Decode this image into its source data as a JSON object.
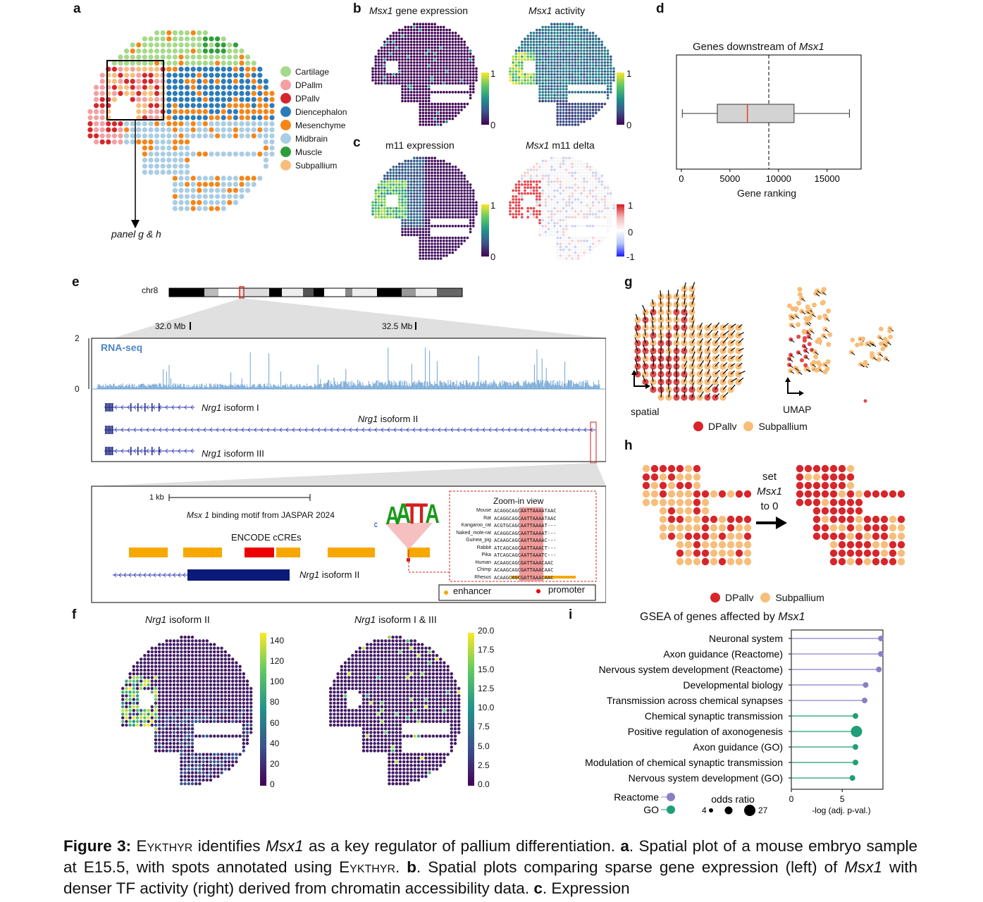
{
  "panel_labels": {
    "a": "a",
    "b": "b",
    "c": "c",
    "d": "d",
    "e": "e",
    "f": "f",
    "g": "g",
    "h": "h",
    "i": "i"
  },
  "panel_a": {
    "legend": [
      {
        "name": "Cartilage",
        "color": "#a6d98a"
      },
      {
        "name": "DPallm",
        "color": "#f3a0a3"
      },
      {
        "name": "DPallv",
        "color": "#d7262b"
      },
      {
        "name": "Diencephalon",
        "color": "#2b7bba"
      },
      {
        "name": "Mesenchyme",
        "color": "#f58518"
      },
      {
        "name": "Midbrain",
        "color": "#a9cde4"
      },
      {
        "name": "Muscle",
        "color": "#2f9e3a"
      },
      {
        "name": "Subpallium",
        "color": "#f7be7b"
      }
    ],
    "arrow_label": "panel g & h"
  },
  "panel_b": {
    "left_title_italic": "Msx1",
    "left_title_rest": " gene expression",
    "right_title_italic": "Msx1",
    "right_title_rest": " activity",
    "cbar_max": "1",
    "cbar_min": "0"
  },
  "panel_c": {
    "left_title": "m11 expression",
    "right_title_italic": "Msx1",
    "right_title_rest": " m11 delta",
    "cbar_max": "1",
    "cbar_min": "0",
    "delta_max": "1",
    "delta_mid": "0",
    "delta_min": "-1"
  },
  "panel_d": {
    "title_prefix": "Genes downstream of ",
    "title_italic": "Msx1",
    "xlabel": "Gene ranking",
    "ticks": [
      "0",
      "5000",
      "10000",
      "15000"
    ]
  },
  "panel_e": {
    "chrom": "chr8",
    "pos1": "32.0 Mb",
    "pos2": "32.5 Mb",
    "track_label": "RNA-seq",
    "y_max": "2",
    "y_min": "0",
    "isoforms": [
      {
        "italic": "Nrg1",
        "rest": " isoform I"
      },
      {
        "italic": "Nrg1",
        "rest": " isoform II"
      },
      {
        "italic": "Nrg1",
        "rest": " isoform III"
      }
    ],
    "scale": "1 kb",
    "motif_italic": "Msx 1",
    "motif_rest": " binding motif from JASPAR 2024",
    "motif_letters": [
      "C",
      "A",
      "A",
      "T",
      "T",
      "A"
    ],
    "encode": "ENCODE cCREs",
    "iso2_italic": "Nrg1",
    "iso2_rest": " isoform II",
    "zoom_title": "Zoom-in view",
    "species": [
      "Mouse",
      "Rat",
      "Kangaroo_rat",
      "Naked_mole-rat",
      "Guinea_pig",
      "Rabbit",
      "Pika",
      "Human",
      "Chimp",
      "Rhesus"
    ],
    "sequences": [
      "ACAGGCAGCAATTAAAATAAC",
      "ACAGGCAGCAATTAAAATAAC",
      "ACGTGCAGCAATTAAAAT---",
      "ACAGGCAGCAATTAAAAT---",
      "ACAAGCAGCAATTAAAAC---",
      "ATCAGCAGCAATTAAACT---",
      "ATCAGCAGCAATTAAATC---",
      "ACAAGCAGCGATTAAACAAC",
      "ACAAGCAGCGATTAAACAAC",
      "ACAAGCAGCGATTAAACAAC"
    ],
    "legend_enhancer": "enhancer",
    "legend_promoter": "promoter"
  },
  "panel_f": {
    "left_italic": "Nrg1",
    "left_rest": " isoform II",
    "right_italic": "Nrg1",
    "right_rest": " isoform I & III",
    "left_ticks": [
      "140",
      "120",
      "100",
      "80",
      "60",
      "40",
      "20",
      "0"
    ],
    "right_ticks": [
      "20.0",
      "17.5",
      "15.0",
      "12.5",
      "10.0",
      "7.5",
      "5.0",
      "2.5",
      "0.0"
    ]
  },
  "panel_g": {
    "spatial": "spatial",
    "umap": "UMAP",
    "legend": [
      {
        "name": "DPallv",
        "color": "#d7262b"
      },
      {
        "name": "Subpallium",
        "color": "#f7be7b"
      }
    ]
  },
  "panel_h": {
    "arrow_line1": "set",
    "arrow_line2": "Msx1",
    "arrow_line3": "to 0",
    "legend": [
      {
        "name": "DPallv",
        "color": "#d7262b"
      },
      {
        "name": "Subpallium",
        "color": "#f7be7b"
      }
    ]
  },
  "panel_i": {
    "title_prefix": "GSEA of genes affected by ",
    "title_italic": "Msx1",
    "xlabel": "-log (adj. p-val.)",
    "ticks": [
      "0",
      "5"
    ],
    "legend_reactome": "Reactome",
    "legend_go": "GO",
    "odds_ratio": "odds ratio",
    "odds_min": "4",
    "odds_max": "27",
    "colors": {
      "Reactome": "#8a7fc7",
      "GO": "#1f9e77"
    }
  },
  "chart_data": [
    {
      "type": "box",
      "title": "Genes downstream of Msx1",
      "xlabel": "Gene ranking",
      "whisker_low": 100,
      "q1": 3700,
      "median": 6800,
      "q3": 11600,
      "whisker_high": 17300,
      "reference_line": 9000,
      "xlim": [
        -500,
        18500
      ]
    },
    {
      "type": "lollipop",
      "title": "GSEA of genes affected by Msx1",
      "xlabel": "-log (adj. p-val.)",
      "xlim": [
        0,
        9
      ],
      "categories": [
        "Neuronal system",
        "Axon guidance (Reactome)",
        "Nervous system development (Reactome)",
        "Developmental biology",
        "Transmission across chemical synapses",
        "Chemical synaptic transmission",
        "Positive regulation of axonogenesis",
        "Axon guidance (GO)",
        "Modulation of chemical synaptic transmission",
        "Nervous system development (GO)"
      ],
      "values": [
        8.8,
        8.8,
        8.6,
        7.3,
        7.2,
        6.3,
        6.4,
        6.3,
        6.3,
        6.0
      ],
      "groups": [
        "Reactome",
        "Reactome",
        "Reactome",
        "Reactome",
        "Reactome",
        "GO",
        "GO",
        "GO",
        "GO",
        "GO"
      ],
      "odds_ratio": [
        6,
        6,
        6,
        6,
        6,
        6,
        27,
        6,
        6,
        6
      ]
    }
  ],
  "caption": {
    "fig": "Figure 3:",
    "s1_sc": "Eykthyr",
    "s1": " identifies ",
    "s1_it": "Msx1",
    "s1b": " as a key regulator of pallium differentiation.",
    "a_lab": "a",
    "a_text": ". Spatial plot of a mouse embryo sample at E15.5, with spots annotated using ",
    "a_sc": "Eykthyr",
    "a_end": ".",
    "b_lab": "b",
    "b_text": ". Spatial plots comparing sparse gene expression (left) of ",
    "b_it": "Msx1",
    "b_text2": " with denser TF activity (right) derived from chromatin accessibility data.",
    "c_lab": "c",
    "c_text": ". Expression"
  }
}
